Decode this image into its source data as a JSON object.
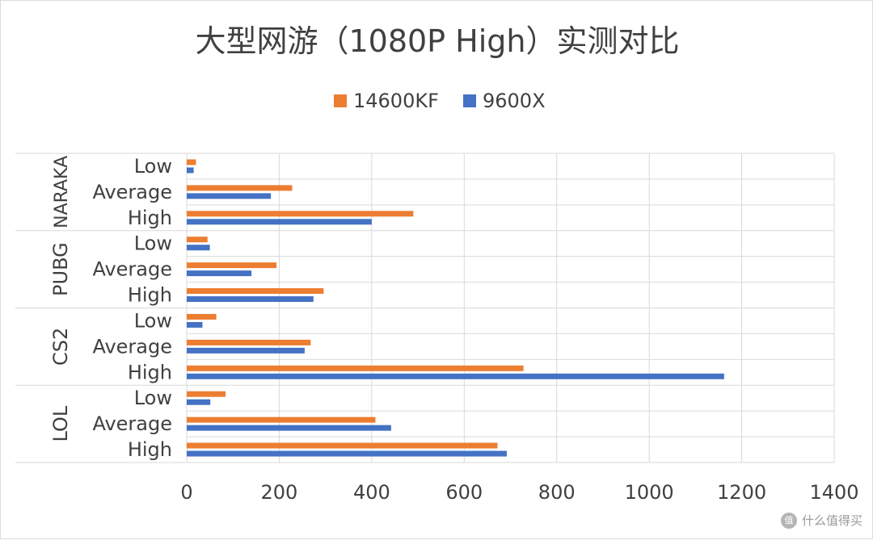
{
  "chart_data": {
    "type": "bar",
    "orientation": "horizontal",
    "title": "大型网游（1080P High）实测对比",
    "xlim": [
      0,
      1400
    ],
    "x_ticks": [
      0,
      200,
      400,
      600,
      800,
      1000,
      1200,
      1400
    ],
    "grid": true,
    "legend_position": "top",
    "groups": [
      {
        "name": "NARAKA",
        "categories": [
          "Low",
          "Average",
          "High"
        ]
      },
      {
        "name": "PUBG",
        "categories": [
          "Low",
          "Average",
          "High"
        ]
      },
      {
        "name": "CS2",
        "categories": [
          "Low",
          "Average",
          "High"
        ]
      },
      {
        "name": "LOL",
        "categories": [
          "Low",
          "Average",
          "High"
        ]
      }
    ],
    "series": [
      {
        "name": "14600KF",
        "color": "#ed7d31",
        "values": [
          20,
          228,
          490,
          45,
          194,
          296,
          64,
          268,
          728,
          84,
          408,
          672
        ]
      },
      {
        "name": "9600X",
        "color": "#4472c4",
        "values": [
          15,
          182,
          400,
          50,
          140,
          274,
          34,
          255,
          1162,
          51,
          442,
          692
        ]
      }
    ]
  },
  "watermark": {
    "text": "什么值得买",
    "logo": "值"
  }
}
